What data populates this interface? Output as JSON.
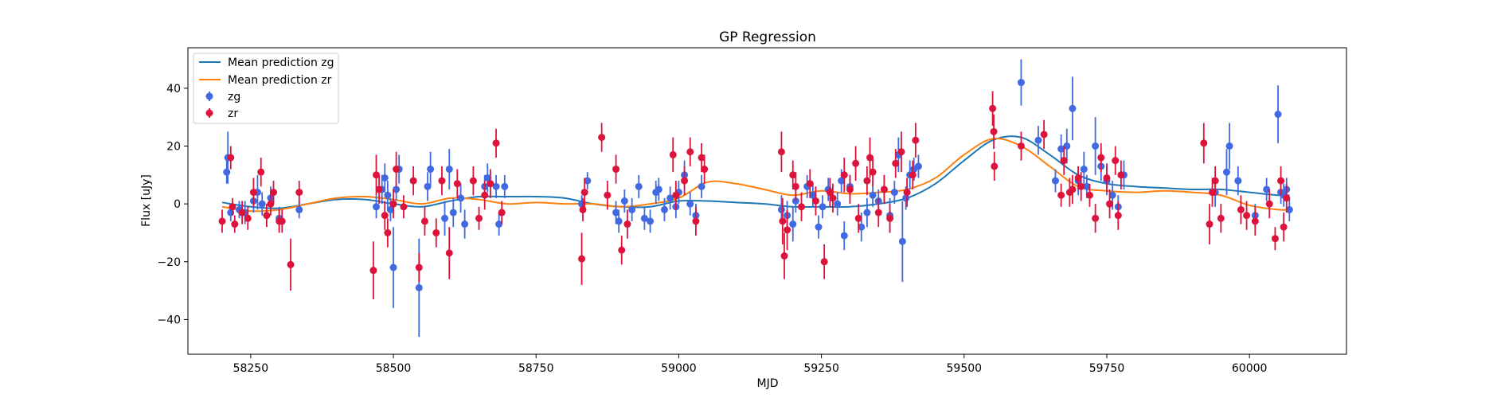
{
  "chart_data": {
    "type": "scatter",
    "title": "GP Regression",
    "xlabel": "MJD",
    "ylabel": "Flux [uJy]",
    "xlim": [
      58140,
      60170
    ],
    "ylim": [
      -52,
      54
    ],
    "xticks": [
      58250,
      58500,
      58750,
      59000,
      59250,
      59500,
      59750,
      60000
    ],
    "yticks": [
      -40,
      -20,
      0,
      20,
      40
    ],
    "legend_position": "upper-left",
    "colors": {
      "zg": "#4169e1",
      "zr": "#dc143c",
      "mean_zg": "#1f77b4",
      "mean_zr": "#ff7f0e"
    },
    "lines": [
      {
        "name": "Mean prediction zg",
        "color": "#1f77b4",
        "x": [
          58200,
          58250,
          58300,
          58350,
          58400,
          58450,
          58500,
          58550,
          58600,
          58650,
          58700,
          58750,
          58800,
          58850,
          58900,
          58950,
          59000,
          59050,
          59100,
          59150,
          59200,
          59250,
          59300,
          59350,
          59400,
          59450,
          59500,
          59550,
          59600,
          59650,
          59700,
          59750,
          59800,
          59850,
          59900,
          59950,
          60000,
          60050,
          60070
        ],
        "y": [
          0.5,
          -1,
          -1.5,
          0,
          1.5,
          1.5,
          0,
          -1,
          1,
          2.5,
          2.5,
          2.5,
          2,
          0,
          -1,
          -1,
          1,
          1,
          0.5,
          0,
          -1,
          -1,
          -1,
          0,
          2,
          7,
          15,
          22,
          23,
          17,
          10,
          7,
          6,
          5.5,
          5,
          5,
          4,
          3,
          3
        ]
      },
      {
        "name": "Mean prediction zr",
        "color": "#ff7f0e",
        "x": [
          58200,
          58250,
          58300,
          58350,
          58400,
          58450,
          58500,
          58550,
          58600,
          58650,
          58700,
          58750,
          58800,
          58850,
          58900,
          58950,
          59000,
          59050,
          59100,
          59150,
          59200,
          59250,
          59300,
          59350,
          59400,
          59450,
          59500,
          59550,
          59600,
          59650,
          59700,
          59750,
          59800,
          59850,
          59900,
          59950,
          60000,
          60050,
          60070
        ],
        "y": [
          -1,
          -2.5,
          -2,
          0,
          2,
          2.5,
          1.5,
          0,
          2,
          1.5,
          0,
          0.5,
          0,
          0,
          -1,
          0,
          2,
          7.5,
          7,
          5,
          3,
          4.5,
          3.5,
          4,
          5,
          9,
          17,
          22.5,
          20,
          13,
          6,
          4.5,
          4,
          4.5,
          4,
          3,
          -0.5,
          -2,
          -2
        ]
      }
    ],
    "series": [
      {
        "name": "zg",
        "color": "#4169e1",
        "points": [
          [
            58208,
            11,
            4
          ],
          [
            58210,
            16,
            9
          ],
          [
            58215,
            -3,
            3
          ],
          [
            58230,
            -2,
            3
          ],
          [
            58240,
            -3,
            4
          ],
          [
            58255,
            1,
            4
          ],
          [
            58262,
            4,
            6
          ],
          [
            58270,
            0,
            4
          ],
          [
            58285,
            2,
            4
          ],
          [
            58300,
            -5,
            4
          ],
          [
            58335,
            -2,
            3
          ],
          [
            58470,
            -1,
            4
          ],
          [
            58480,
            5,
            5
          ],
          [
            58485,
            9,
            5
          ],
          [
            58490,
            3,
            5
          ],
          [
            58495,
            -2,
            4
          ],
          [
            58500,
            -22,
            14
          ],
          [
            58505,
            5,
            4
          ],
          [
            58510,
            12,
            5
          ],
          [
            58545,
            -29,
            17
          ],
          [
            58560,
            6,
            5
          ],
          [
            58565,
            12,
            6
          ],
          [
            58590,
            -5,
            6
          ],
          [
            58598,
            12,
            7
          ],
          [
            58605,
            -3,
            5
          ],
          [
            58618,
            2,
            5
          ],
          [
            58625,
            -7,
            5
          ],
          [
            58660,
            6,
            4
          ],
          [
            58665,
            9,
            5
          ],
          [
            58680,
            6,
            4
          ],
          [
            58685,
            -7,
            4
          ],
          [
            58695,
            6,
            4
          ],
          [
            58830,
            0,
            3
          ],
          [
            58840,
            8,
            3
          ],
          [
            58890,
            -3,
            4
          ],
          [
            58895,
            -6,
            4
          ],
          [
            58905,
            1,
            4
          ],
          [
            58918,
            -2,
            4
          ],
          [
            58930,
            6,
            4
          ],
          [
            58940,
            -5,
            4
          ],
          [
            58950,
            -6,
            4
          ],
          [
            58960,
            4,
            4
          ],
          [
            58965,
            5,
            4
          ],
          [
            58975,
            -2,
            4
          ],
          [
            58985,
            2,
            4
          ],
          [
            58995,
            -1,
            4
          ],
          [
            59000,
            4,
            4
          ],
          [
            59010,
            10,
            5
          ],
          [
            59020,
            0,
            4
          ],
          [
            59030,
            -4,
            4
          ],
          [
            59040,
            6,
            4
          ],
          [
            59180,
            -2,
            5
          ],
          [
            59190,
            -4,
            5
          ],
          [
            59200,
            -7,
            6
          ],
          [
            59205,
            1,
            4
          ],
          [
            59225,
            6,
            4
          ],
          [
            59235,
            3,
            4
          ],
          [
            59245,
            -8,
            4
          ],
          [
            59252,
            -1,
            4
          ],
          [
            59262,
            5,
            4
          ],
          [
            59278,
            0,
            4
          ],
          [
            59285,
            8,
            4
          ],
          [
            59290,
            -11,
            5
          ],
          [
            59300,
            6,
            4
          ],
          [
            59320,
            -8,
            5
          ],
          [
            59330,
            -3,
            5
          ],
          [
            59340,
            3,
            4
          ],
          [
            59350,
            1,
            4
          ],
          [
            59360,
            5,
            5
          ],
          [
            59370,
            -4,
            6
          ],
          [
            59378,
            4,
            4
          ],
          [
            59385,
            17,
            6
          ],
          [
            59392,
            -13,
            14
          ],
          [
            59398,
            2,
            4
          ],
          [
            59405,
            10,
            5
          ],
          [
            59412,
            12,
            4
          ],
          [
            59420,
            13,
            4
          ],
          [
            59600,
            42,
            8
          ],
          [
            59630,
            22,
            5
          ],
          [
            59660,
            8,
            4
          ],
          [
            59670,
            19,
            5
          ],
          [
            59680,
            20,
            6
          ],
          [
            59690,
            33,
            11
          ],
          [
            59700,
            8,
            5
          ],
          [
            59710,
            12,
            6
          ],
          [
            59715,
            6,
            4
          ],
          [
            59730,
            20,
            10
          ],
          [
            59740,
            13,
            5
          ],
          [
            59750,
            8,
            5
          ],
          [
            59760,
            3,
            5
          ],
          [
            59770,
            -1,
            4
          ],
          [
            59780,
            10,
            5
          ],
          [
            59940,
            4,
            5
          ],
          [
            59960,
            11,
            8
          ],
          [
            59965,
            20,
            8
          ],
          [
            59980,
            8,
            5
          ],
          [
            60010,
            -4,
            4
          ],
          [
            60030,
            5,
            4
          ],
          [
            60050,
            31,
            10
          ],
          [
            60055,
            4,
            4
          ],
          [
            60060,
            3,
            4
          ],
          [
            60065,
            5,
            4
          ],
          [
            60070,
            -2,
            4
          ]
        ]
      },
      {
        "name": "zr",
        "color": "#dc143c",
        "points": [
          [
            58200,
            -6,
            4
          ],
          [
            58215,
            16,
            4
          ],
          [
            58218,
            -1,
            3
          ],
          [
            58222,
            -7,
            3
          ],
          [
            58235,
            -3,
            4
          ],
          [
            58245,
            -5,
            4
          ],
          [
            58255,
            4,
            5
          ],
          [
            58268,
            11,
            5
          ],
          [
            58278,
            -4,
            4
          ],
          [
            58285,
            0,
            4
          ],
          [
            58290,
            4,
            4
          ],
          [
            58300,
            -6,
            4
          ],
          [
            58305,
            -6,
            4
          ],
          [
            58320,
            -21,
            9
          ],
          [
            58335,
            4,
            4
          ],
          [
            58465,
            -23,
            10
          ],
          [
            58470,
            10,
            7
          ],
          [
            58475,
            5,
            5
          ],
          [
            58485,
            -4,
            5
          ],
          [
            58490,
            -10,
            5
          ],
          [
            58500,
            0,
            5
          ],
          [
            58505,
            12,
            6
          ],
          [
            58518,
            -1,
            4
          ],
          [
            58535,
            8,
            5
          ],
          [
            58545,
            -22,
            5
          ],
          [
            58555,
            -6,
            5
          ],
          [
            58575,
            -10,
            5
          ],
          [
            58585,
            8,
            5
          ],
          [
            58598,
            -17,
            9
          ],
          [
            58612,
            7,
            5
          ],
          [
            58640,
            8,
            5
          ],
          [
            58650,
            -5,
            4
          ],
          [
            58660,
            3,
            5
          ],
          [
            58670,
            7,
            5
          ],
          [
            58680,
            21,
            5
          ],
          [
            58690,
            -3,
            4
          ],
          [
            58830,
            -19,
            9
          ],
          [
            58832,
            -2,
            4
          ],
          [
            58835,
            4,
            5
          ],
          [
            58865,
            23,
            5
          ],
          [
            58875,
            3,
            5
          ],
          [
            58890,
            12,
            5
          ],
          [
            58900,
            -16,
            5
          ],
          [
            58910,
            -7,
            5
          ],
          [
            58990,
            17,
            6
          ],
          [
            58995,
            3,
            5
          ],
          [
            59010,
            8,
            5
          ],
          [
            59020,
            18,
            5
          ],
          [
            59030,
            -6,
            5
          ],
          [
            59040,
            16,
            5
          ],
          [
            59045,
            12,
            5
          ],
          [
            59180,
            18,
            7
          ],
          [
            59182,
            -6,
            8
          ],
          [
            59185,
            -18,
            8
          ],
          [
            59190,
            -9,
            7
          ],
          [
            59200,
            10,
            5
          ],
          [
            59205,
            6,
            5
          ],
          [
            59215,
            -1,
            5
          ],
          [
            59230,
            7,
            5
          ],
          [
            59240,
            1,
            5
          ],
          [
            59255,
            -20,
            6
          ],
          [
            59265,
            4,
            5
          ],
          [
            59270,
            2,
            5
          ],
          [
            59290,
            10,
            6
          ],
          [
            59300,
            5,
            5
          ],
          [
            59310,
            14,
            6
          ],
          [
            59315,
            -5,
            5
          ],
          [
            59330,
            8,
            5
          ],
          [
            59335,
            16,
            7
          ],
          [
            59340,
            11,
            5
          ],
          [
            59350,
            -3,
            5
          ],
          [
            59360,
            5,
            5
          ],
          [
            59370,
            -5,
            5
          ],
          [
            59380,
            14,
            5
          ],
          [
            59390,
            18,
            7
          ],
          [
            59400,
            4,
            5
          ],
          [
            59410,
            10,
            5
          ],
          [
            59415,
            22,
            6
          ],
          [
            59550,
            33,
            6
          ],
          [
            59552,
            25,
            6
          ],
          [
            59553,
            13,
            5
          ],
          [
            59600,
            20,
            5
          ],
          [
            59640,
            24,
            5
          ],
          [
            59670,
            3,
            4
          ],
          [
            59675,
            15,
            5
          ],
          [
            59685,
            4,
            5
          ],
          [
            59690,
            5,
            5
          ],
          [
            59700,
            9,
            4
          ],
          [
            59705,
            6,
            5
          ],
          [
            59720,
            3,
            4
          ],
          [
            59730,
            -5,
            5
          ],
          [
            59740,
            16,
            5
          ],
          [
            59750,
            9,
            5
          ],
          [
            59755,
            0,
            5
          ],
          [
            59765,
            15,
            5
          ],
          [
            59770,
            -4,
            5
          ],
          [
            59775,
            10,
            5
          ],
          [
            59920,
            21,
            7
          ],
          [
            59930,
            -7,
            7
          ],
          [
            59935,
            4,
            5
          ],
          [
            59940,
            8,
            5
          ],
          [
            59950,
            -5,
            5
          ],
          [
            59985,
            -2,
            5
          ],
          [
            59995,
            -4,
            5
          ],
          [
            60010,
            -6,
            5
          ],
          [
            60035,
            0,
            5
          ],
          [
            60045,
            -12,
            4
          ],
          [
            60055,
            8,
            5
          ],
          [
            60060,
            -8,
            5
          ],
          [
            60065,
            2,
            5
          ]
        ]
      }
    ],
    "legend": [
      "Mean prediction zg",
      "Mean prediction zr",
      "zg",
      "zr"
    ]
  }
}
